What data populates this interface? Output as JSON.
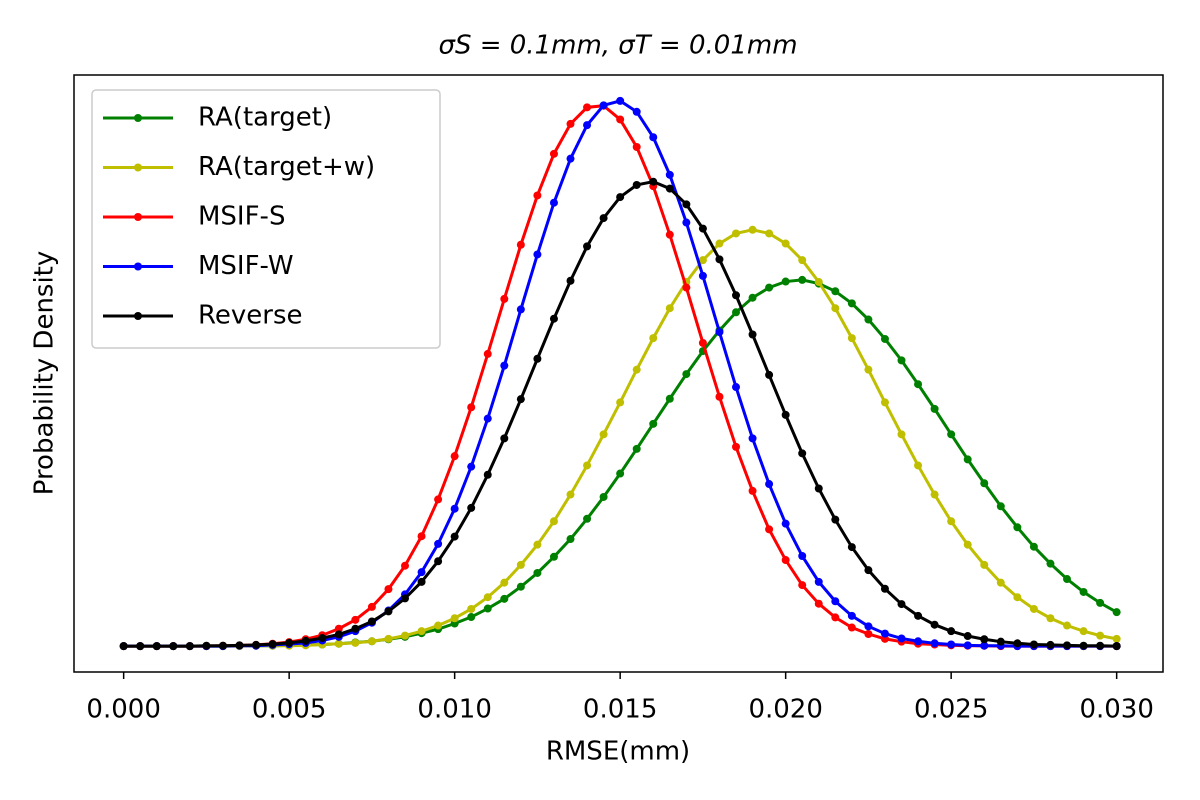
{
  "chart_data": {
    "type": "line",
    "title": "σS = 0.1mm,  σT = 0.01mm",
    "x_label": "RMSE(mm)",
    "y_label": "Probability Density",
    "x": [
      0,
      0.0005,
      0.001,
      0.0015,
      0.002,
      0.0025,
      0.003,
      0.0035,
      0.004,
      0.0045,
      0.005,
      0.0055,
      0.006,
      0.0065,
      0.007,
      0.0075,
      0.008,
      0.0085,
      0.009,
      0.0095,
      0.01,
      0.0105,
      0.011,
      0.0115,
      0.012,
      0.0125,
      0.013,
      0.0135,
      0.014,
      0.0145,
      0.015,
      0.0155,
      0.016,
      0.0165,
      0.017,
      0.0175,
      0.018,
      0.0185,
      0.019,
      0.0195,
      0.02,
      0.0205,
      0.021,
      0.0215,
      0.022,
      0.0225,
      0.023,
      0.0235,
      0.024,
      0.0245,
      0.025,
      0.0255,
      0.026,
      0.0265,
      0.027,
      0.0275,
      0.028,
      0.0285,
      0.029,
      0.0295,
      0.03
    ],
    "series": [
      {
        "name": "RA(target)",
        "color": "#008000",
        "values": [
          0,
          0,
          0,
          0,
          0,
          0,
          0,
          0.1,
          0.1,
          0.1,
          0.2,
          0.3,
          0.4,
          0.6,
          0.9,
          1.2,
          1.7,
          2.3,
          3.2,
          4.2,
          5.6,
          7.2,
          9.3,
          11.7,
          14.7,
          18.1,
          22.1,
          26.5,
          31.5,
          36.9,
          42.7,
          48.8,
          55,
          61.2,
          67.3,
          73,
          78.1,
          82.6,
          86.2,
          88.7,
          90.2,
          90.6,
          89.7,
          87.8,
          84.8,
          80.8,
          76,
          70.7,
          64.8,
          58.7,
          52.4,
          46.2,
          40.3,
          34.6,
          29.4,
          24.6,
          20.4,
          16.6,
          13.4,
          10.7,
          8.4
        ]
      },
      {
        "name": "RA(target+w)",
        "color": "#bfbf00",
        "values": [
          0,
          0,
          0,
          0,
          0,
          0,
          0,
          0,
          0.1,
          0.1,
          0.1,
          0.2,
          0.4,
          0.6,
          0.8,
          1.2,
          1.8,
          2.6,
          3.7,
          5.1,
          6.9,
          9.2,
          12.1,
          15.7,
          20.1,
          25.1,
          30.9,
          37.5,
          44.7,
          52.4,
          60.3,
          68.4,
          76.2,
          83.6,
          90.1,
          95.5,
          99.6,
          102.1,
          103,
          102.1,
          99.6,
          95.5,
          90.1,
          83.6,
          76.2,
          68.4,
          60.3,
          52.4,
          44.7,
          37.5,
          30.9,
          25.1,
          20.1,
          15.7,
          12.1,
          9.2,
          6.9,
          5.1,
          3.7,
          2.6,
          1.8
        ]
      },
      {
        "name": "MSIF-S",
        "color": "#ff0000",
        "values": [
          0,
          0,
          0,
          0,
          0,
          0,
          0.1,
          0.2,
          0.3,
          0.6,
          1,
          1.7,
          2.7,
          4.3,
          6.5,
          9.7,
          14.1,
          19.9,
          27.2,
          36.3,
          47,
          59.1,
          72.3,
          85.9,
          99.3,
          111.5,
          121.8,
          129.2,
          133.3,
          133.7,
          130.3,
          123.5,
          113.8,
          101.8,
          88.7,
          75,
          61.7,
          49.3,
          38.4,
          28.9,
          21.3,
          15.1,
          10.5,
          7.1,
          4.6,
          3,
          1.8,
          1.1,
          0.6,
          0.4,
          0.2,
          0.1,
          0.1,
          0,
          0,
          0,
          0,
          0,
          0,
          0,
          0
        ]
      },
      {
        "name": "MSIF-W",
        "color": "#0000ff",
        "values": [
          0,
          0,
          0,
          0,
          0,
          0,
          0,
          0.1,
          0.1,
          0.3,
          0.5,
          0.8,
          1.4,
          2.3,
          3.7,
          5.8,
          8.8,
          12.8,
          18.3,
          25.3,
          34,
          44.4,
          56.3,
          69.4,
          83.3,
          96.9,
          109.7,
          120.6,
          128.9,
          133.8,
          134.9,
          132.2,
          125.9,
          116.6,
          104.8,
          91.6,
          77.7,
          64.1,
          51.4,
          40.1,
          30.3,
          22.3,
          15.9,
          11.1,
          7.5,
          4.9,
          3.1,
          1.9,
          1.2,
          0.7,
          0.4,
          0.2,
          0.1,
          0.1,
          0,
          0,
          0,
          0,
          0,
          0,
          0
        ]
      },
      {
        "name": "Reverse",
        "color": "#000000",
        "values": [
          0,
          0,
          0,
          0,
          0,
          0.1,
          0.1,
          0.2,
          0.3,
          0.5,
          0.8,
          1.3,
          2,
          2.9,
          4.3,
          6.1,
          8.6,
          11.8,
          15.9,
          21,
          27.1,
          34.2,
          42.4,
          51.4,
          61.1,
          71.1,
          81,
          90.4,
          98.9,
          105.9,
          111.1,
          114.1,
          114.9,
          113.2,
          109.3,
          103.3,
          95.7,
          86.8,
          77.1,
          67.1,
          57.2,
          47.7,
          39,
          31.3,
          24.5,
          18.8,
          14.2,
          10.4,
          7.5,
          5.3,
          3.7,
          2.5,
          1.7,
          1.1,
          0.7,
          0.4,
          0.3,
          0.2,
          0.1,
          0.1,
          0
        ]
      }
    ],
    "xlim": [
      -0.0015,
      0.0314
    ],
    "ylim": [
      -6.4,
      141.3
    ],
    "xticks": [
      {
        "value": 0,
        "label": "0.000"
      },
      {
        "value": 0.005,
        "label": "0.005"
      },
      {
        "value": 0.01,
        "label": "0.010"
      },
      {
        "value": 0.015,
        "label": "0.015"
      },
      {
        "value": 0.02,
        "label": "0.020"
      },
      {
        "value": 0.025,
        "label": "0.025"
      },
      {
        "value": 0.03,
        "label": "0.030"
      }
    ],
    "legend": "upper left",
    "markers": true
  }
}
